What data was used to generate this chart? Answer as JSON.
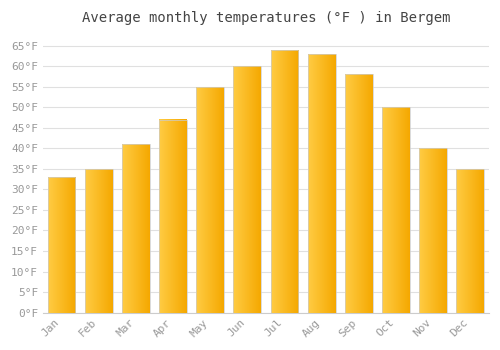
{
  "title": "Average monthly temperatures (°F ) in Bergem",
  "months": [
    "Jan",
    "Feb",
    "Mar",
    "Apr",
    "May",
    "Jun",
    "Jul",
    "Aug",
    "Sep",
    "Oct",
    "Nov",
    "Dec"
  ],
  "values": [
    33,
    35,
    41,
    47,
    55,
    60,
    64,
    63,
    58,
    50,
    40,
    35
  ],
  "bar_color_left": "#FFCC44",
  "bar_color_right": "#F5A800",
  "bar_edge_color": "#cccccc",
  "ylim": [
    0,
    68
  ],
  "yticks": [
    0,
    5,
    10,
    15,
    20,
    25,
    30,
    35,
    40,
    45,
    50,
    55,
    60,
    65
  ],
  "ytick_labels": [
    "0°F",
    "5°F",
    "10°F",
    "15°F",
    "20°F",
    "25°F",
    "30°F",
    "35°F",
    "40°F",
    "45°F",
    "50°F",
    "55°F",
    "60°F",
    "65°F"
  ],
  "background_color": "#ffffff",
  "plot_bg_color": "#ffffff",
  "grid_color": "#e0e0e0",
  "title_fontsize": 10,
  "tick_fontsize": 8,
  "tick_color": "#999999",
  "bar_width": 0.75
}
